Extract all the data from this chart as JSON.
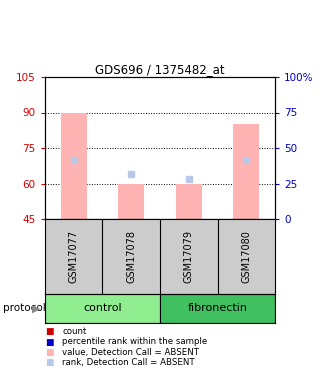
{
  "title": "GDS696 / 1375482_at",
  "samples": [
    "GSM17077",
    "GSM17078",
    "GSM17079",
    "GSM17080"
  ],
  "bar_bottoms": [
    45,
    45,
    45,
    45
  ],
  "bar_tops": [
    90,
    60,
    60,
    85
  ],
  "rank_values": [
    70,
    64,
    62,
    70
  ],
  "ylim_left": [
    45,
    105
  ],
  "ylim_right": [
    0,
    100
  ],
  "yticks_left": [
    45,
    60,
    75,
    90,
    105
  ],
  "yticks_right": [
    0,
    25,
    50,
    75,
    100
  ],
  "yticklabels_right": [
    "0",
    "25",
    "50",
    "75",
    "100%"
  ],
  "bar_color": "#ffb3b3",
  "rank_color": "#b8c8e8",
  "control_color": "#90EE90",
  "fibronectin_color": "#40C060",
  "label_area_bg": "#cccccc",
  "left_tick_color": "#cc0000",
  "right_tick_color": "#0000cc",
  "bar_width": 0.45,
  "legend_items": [
    {
      "label": "count",
      "color": "#cc0000"
    },
    {
      "label": "percentile rank within the sample",
      "color": "#0000cc"
    },
    {
      "label": "value, Detection Call = ABSENT",
      "color": "#ffb3b3"
    },
    {
      "label": "rank, Detection Call = ABSENT",
      "color": "#b8c8e8"
    }
  ]
}
